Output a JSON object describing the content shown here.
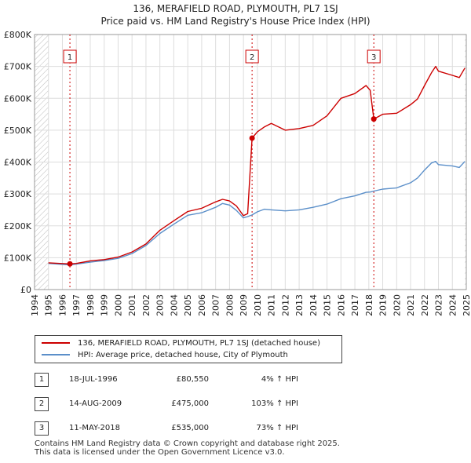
{
  "title": "136, MERAFIELD ROAD, PLYMOUTH, PL7 1SJ",
  "subtitle": "Price paid vs. HM Land Registry's House Price Index (HPI)",
  "chart_data": {
    "type": "line",
    "title": "136, MERAFIELD ROAD, PLYMOUTH, PL7 1SJ",
    "subtitle": "Price paid vs. HM Land Registry's House Price Index (HPI)",
    "xlim": [
      1994,
      2025
    ],
    "ylim": [
      0,
      800000
    ],
    "x_ticks": [
      1994,
      1995,
      1996,
      1997,
      1998,
      1999,
      2000,
      2001,
      2002,
      2003,
      2004,
      2005,
      2006,
      2007,
      2008,
      2009,
      2010,
      2011,
      2012,
      2013,
      2014,
      2015,
      2016,
      2017,
      2018,
      2019,
      2020,
      2021,
      2022,
      2023,
      2024,
      2025
    ],
    "y_ticks": [
      0,
      100000,
      200000,
      300000,
      400000,
      500000,
      600000,
      700000,
      800000
    ],
    "y_tick_labels": [
      "£0",
      "£100K",
      "£200K",
      "£300K",
      "£400K",
      "£500K",
      "£600K",
      "£700K",
      "£800K"
    ],
    "grid": true,
    "hatched_regions": [
      [
        1994,
        1995
      ],
      [
        2024.9,
        2025
      ]
    ],
    "series": [
      {
        "name": "136, MERAFIELD ROAD, PLYMOUTH, PL7 1SJ (detached house)",
        "color": "#cc0000",
        "x": [
          1995.0,
          1996.54,
          1997.0,
          1998.0,
          1999.0,
          2000.0,
          2001.0,
          2002.0,
          2003.0,
          2004.0,
          2005.0,
          2006.0,
          2007.0,
          2007.5,
          2008.0,
          2008.5,
          2009.0,
          2009.3,
          2009.62,
          2009.62,
          2010.0,
          2010.5,
          2011.0,
          2012.0,
          2013.0,
          2014.0,
          2015.0,
          2016.0,
          2017.0,
          2017.8,
          2018.1,
          2018.36,
          2018.36,
          2019.0,
          2020.0,
          2021.0,
          2021.5,
          2022.0,
          2022.5,
          2022.8,
          2023.0,
          2024.0,
          2024.5,
          2024.9
        ],
        "values": [
          84000,
          80550,
          82000,
          90000,
          94000,
          102000,
          118000,
          143000,
          186000,
          216000,
          245000,
          255000,
          275000,
          283000,
          278000,
          262000,
          232000,
          238000,
          475000,
          475000,
          495000,
          510000,
          521000,
          500000,
          505000,
          515000,
          545000,
          600000,
          615000,
          640000,
          625000,
          535000,
          535000,
          550000,
          553000,
          580000,
          598000,
          640000,
          680000,
          700000,
          685000,
          672000,
          665000,
          695000
        ]
      },
      {
        "name": "HPI: Average price, detached house, City of Plymouth",
        "color": "#5b8fc9",
        "x": [
          1995.0,
          1996.54,
          1997.0,
          1998.0,
          1999.0,
          2000.0,
          2001.0,
          2002.0,
          2003.0,
          2004.0,
          2005.0,
          2006.0,
          2007.0,
          2007.5,
          2008.0,
          2008.5,
          2009.0,
          2009.3,
          2009.62,
          2010.0,
          2010.5,
          2011.0,
          2012.0,
          2013.0,
          2014.0,
          2015.0,
          2016.0,
          2017.0,
          2017.8,
          2018.1,
          2018.36,
          2019.0,
          2020.0,
          2021.0,
          2021.5,
          2022.0,
          2022.5,
          2022.8,
          2023.0,
          2024.0,
          2024.5,
          2024.9
        ],
        "values": [
          82000,
          77500,
          80000,
          86000,
          91000,
          98000,
          113000,
          138000,
          176000,
          205000,
          233000,
          241000,
          258000,
          270000,
          265000,
          248000,
          225000,
          229000,
          234000,
          244000,
          252000,
          250000,
          247000,
          250000,
          258000,
          268000,
          285000,
          294000,
          305000,
          306000,
          309000,
          315000,
          319000,
          335000,
          350000,
          375000,
          397000,
          402000,
          392000,
          388000,
          383000,
          402000
        ]
      }
    ],
    "sales": [
      {
        "label": "1",
        "x": 1996.54,
        "value": 80550
      },
      {
        "label": "2",
        "x": 2009.62,
        "value": 475000
      },
      {
        "label": "3",
        "x": 2018.36,
        "value": 535000
      }
    ]
  },
  "legend": {
    "property_label": "136, MERAFIELD ROAD, PLYMOUTH, PL7 1SJ (detached house)",
    "hpi_label": "HPI: Average price, detached house, City of Plymouth",
    "property_color": "#cc0000",
    "hpi_color": "#5b8fc9"
  },
  "sales_table": [
    {
      "num": "1",
      "date": "18-JUL-1996",
      "price": "£80,550",
      "hpi": "4% ↑ HPI"
    },
    {
      "num": "2",
      "date": "14-AUG-2009",
      "price": "£475,000",
      "hpi": "103% ↑ HPI"
    },
    {
      "num": "3",
      "date": "11-MAY-2018",
      "price": "£535,000",
      "hpi": "73% ↑ HPI"
    }
  ],
  "footer": {
    "line1": "Contains HM Land Registry data © Crown copyright and database right 2025.",
    "line2": "This data is licensed under the Open Government Licence v3.0."
  }
}
